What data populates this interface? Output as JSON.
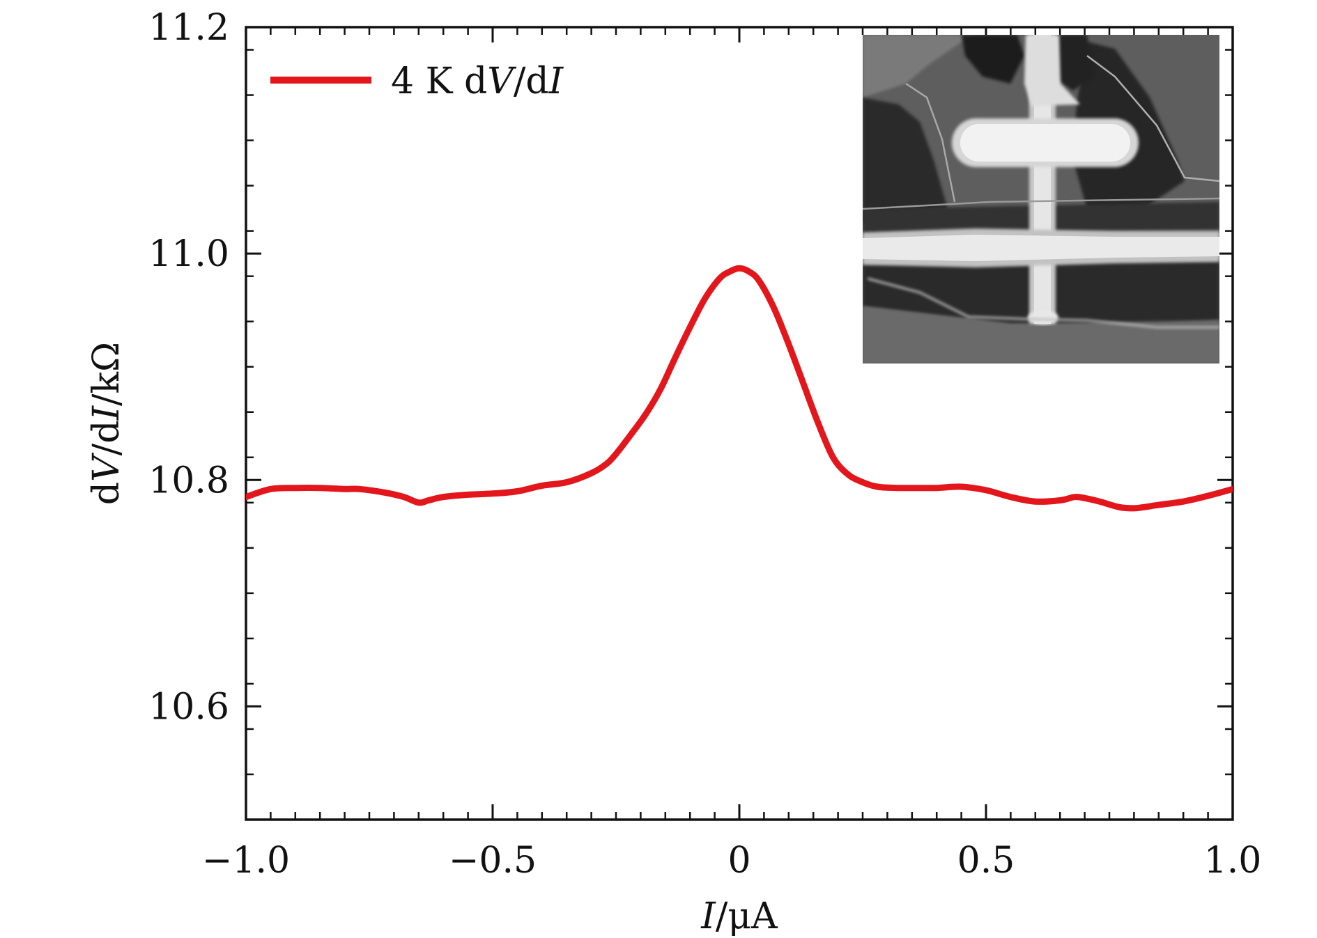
{
  "chart_data": {
    "type": "line",
    "title": "",
    "xlabel": {
      "var": "I",
      "unit": "/μA"
    },
    "ylabel": {
      "pre": "d",
      "var1": "V",
      "mid": "/d",
      "var2": "I",
      "unit": "/kΩ"
    },
    "xlim": [
      -1.0,
      1.0
    ],
    "ylim": [
      10.5,
      11.2
    ],
    "x_ticks": [
      {
        "value": -1.0,
        "label": "−1.0"
      },
      {
        "value": -0.5,
        "label": "−0.5"
      },
      {
        "value": 0.0,
        "label": "0"
      },
      {
        "value": 0.5,
        "label": "0.5"
      },
      {
        "value": 1.0,
        "label": "1.0"
      }
    ],
    "y_ticks": [
      {
        "value": 10.6,
        "label": "10.6"
      },
      {
        "value": 10.8,
        "label": "10.8"
      },
      {
        "value": 11.0,
        "label": "11.0"
      },
      {
        "value": 11.2,
        "label": "11.2"
      }
    ],
    "x_minor_step": 0.05,
    "y_minor_step": 0.04,
    "grid": false,
    "legend": {
      "placement": "top-left",
      "entries": [
        {
          "pre": "4 K d",
          "var1": "V",
          "mid": "/d",
          "var2": "I",
          "color": "#e3161c"
        }
      ]
    },
    "series": [
      {
        "color": "#e3161c",
        "x": [
          -1.0,
          -0.95,
          -0.9,
          -0.85,
          -0.8,
          -0.77,
          -0.72,
          -0.68,
          -0.65,
          -0.63,
          -0.6,
          -0.55,
          -0.5,
          -0.45,
          -0.4,
          -0.35,
          -0.3,
          -0.27,
          -0.25,
          -0.22,
          -0.19,
          -0.16,
          -0.13,
          -0.1,
          -0.07,
          -0.04,
          -0.02,
          0.0,
          0.02,
          0.04,
          0.07,
          0.1,
          0.13,
          0.16,
          0.19,
          0.22,
          0.25,
          0.28,
          0.32,
          0.36,
          0.4,
          0.45,
          0.5,
          0.55,
          0.6,
          0.65,
          0.68,
          0.7,
          0.73,
          0.77,
          0.8,
          0.82,
          0.85,
          0.9,
          0.95,
          1.0
        ],
        "y": [
          10.785,
          10.792,
          10.793,
          10.793,
          10.792,
          10.792,
          10.789,
          10.785,
          10.78,
          10.782,
          10.785,
          10.787,
          10.788,
          10.79,
          10.795,
          10.798,
          10.806,
          10.814,
          10.823,
          10.84,
          10.858,
          10.88,
          10.908,
          10.935,
          10.96,
          10.978,
          10.984,
          10.987,
          10.984,
          10.976,
          10.952,
          10.92,
          10.885,
          10.85,
          10.82,
          10.805,
          10.798,
          10.794,
          10.793,
          10.793,
          10.793,
          10.794,
          10.791,
          10.785,
          10.781,
          10.782,
          10.785,
          10.784,
          10.781,
          10.776,
          10.775,
          10.776,
          10.778,
          10.781,
          10.786,
          10.792
        ]
      }
    ]
  },
  "inset": {
    "kind": "grayscale micrograph"
  }
}
